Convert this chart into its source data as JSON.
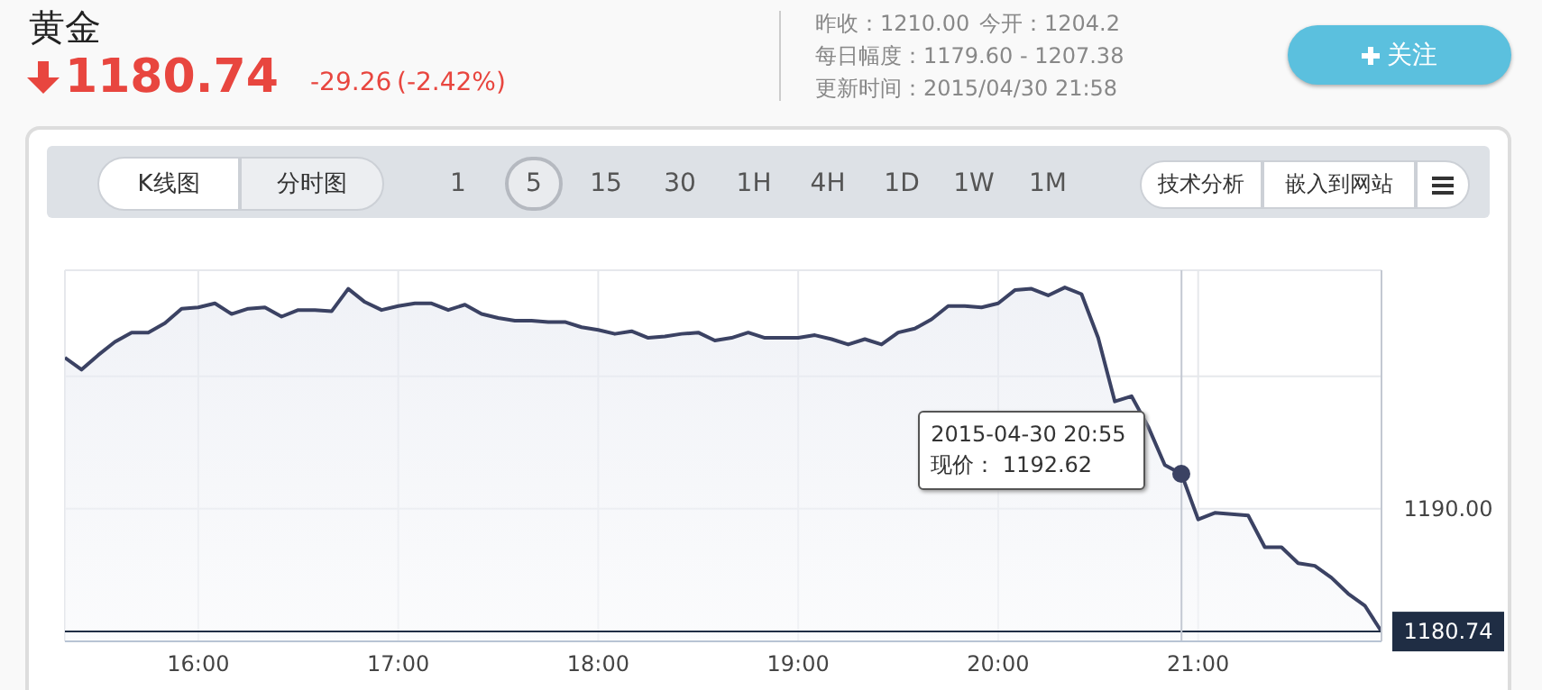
{
  "chart_data": {
    "type": "area",
    "title": "黄金",
    "x": [
      15.3333,
      15.4167,
      15.5,
      15.5833,
      15.6667,
      15.75,
      15.8333,
      15.9167,
      16,
      16.0833,
      16.1667,
      16.25,
      16.3333,
      16.4167,
      16.5,
      16.5833,
      16.6667,
      16.75,
      16.8333,
      16.9167,
      17,
      17.0833,
      17.1667,
      17.25,
      17.3333,
      17.4167,
      17.5,
      17.5833,
      17.6667,
      17.75,
      17.8333,
      17.9167,
      18,
      18.0833,
      18.1667,
      18.25,
      18.3333,
      18.4167,
      18.5,
      18.5833,
      18.6667,
      18.75,
      18.8333,
      18.9167,
      19,
      19.0833,
      19.1667,
      19.25,
      19.3333,
      19.4167,
      19.5,
      19.5833,
      19.6667,
      19.75,
      19.8333,
      19.9167,
      20,
      20.0833,
      20.1667,
      20.25,
      20.3333,
      20.4167,
      20.5,
      20.5833,
      20.6667,
      20.75,
      20.8333,
      20.9167,
      21,
      21.0833,
      21.1667,
      21.25,
      21.3333,
      21.4167,
      21.5,
      21.5833,
      21.6667,
      21.75,
      21.8333,
      21.9167
    ],
    "series": [
      {
        "color": "#3b4263",
        "values": [
          1201.4,
          1200.5,
          1201.6,
          1202.6,
          1203.3,
          1203.3,
          1204.0,
          1205.1,
          1205.2,
          1205.5,
          1204.7,
          1205.1,
          1205.2,
          1204.5,
          1205.0,
          1205.0,
          1204.9,
          1206.6,
          1205.6,
          1205.0,
          1205.3,
          1205.5,
          1205.5,
          1205.0,
          1205.4,
          1204.7,
          1204.4,
          1204.2,
          1204.2,
          1204.1,
          1204.1,
          1203.7,
          1203.5,
          1203.2,
          1203.4,
          1202.9,
          1203.0,
          1203.2,
          1203.3,
          1202.7,
          1202.9,
          1203.3,
          1202.9,
          1202.9,
          1202.9,
          1203.1,
          1202.8,
          1202.4,
          1202.8,
          1202.4,
          1203.3,
          1203.6,
          1204.3,
          1205.3,
          1205.3,
          1205.2,
          1205.5,
          1206.5,
          1206.6,
          1206.1,
          1206.7,
          1206.2,
          1202.9,
          1198.1,
          1198.5,
          1196.2,
          1193.3,
          1192.62,
          1189.2,
          1189.7,
          1189.6,
          1189.5,
          1187.1,
          1187.1,
          1185.9,
          1185.7,
          1184.8,
          1183.6,
          1182.7,
          1180.74
        ]
      }
    ],
    "xlim": [
      15.3333,
      21.9167
    ],
    "xticks": [
      {
        "value": 16,
        "label": "16:00"
      },
      {
        "value": 17,
        "label": "17:00"
      },
      {
        "value": 18,
        "label": "18:00"
      },
      {
        "value": 19,
        "label": "19:00"
      },
      {
        "value": 20,
        "label": "20:00"
      },
      {
        "value": 21,
        "label": "21:00"
      }
    ],
    "ylim": [
      1180,
      1208
    ],
    "yticks": [
      {
        "value": 1180.74,
        "label": "1180.74"
      },
      {
        "value": 1190,
        "label": "1190.00"
      },
      {
        "value": 1200,
        "label": null
      }
    ],
    "grid": true,
    "ref_lines": [
      {
        "axis": "y",
        "value": 1180.74,
        "color": "#1f2d44"
      },
      {
        "axis": "x",
        "value": 20.9167,
        "color": "#c3c8d2"
      }
    ],
    "annotations": [
      "1180.74",
      "-29.26",
      "(-2.42%)",
      "昨收：1210.00",
      "今开：1204.2",
      "每日幅度：1179.60 - 1207.38",
      "更新时间：2015/04/30 21:58",
      "关注",
      "K线图",
      "分时图",
      "15",
      "1",
      "5",
      "30",
      "1H",
      "4H",
      "1D",
      "1W",
      "1M",
      "技术分析",
      "嵌入到网站",
      {
        "text": "2015-04-30 20:55",
        "x": 20.9167,
        "y": 1192.62
      },
      "现价： 1192.62"
    ]
  }
}
